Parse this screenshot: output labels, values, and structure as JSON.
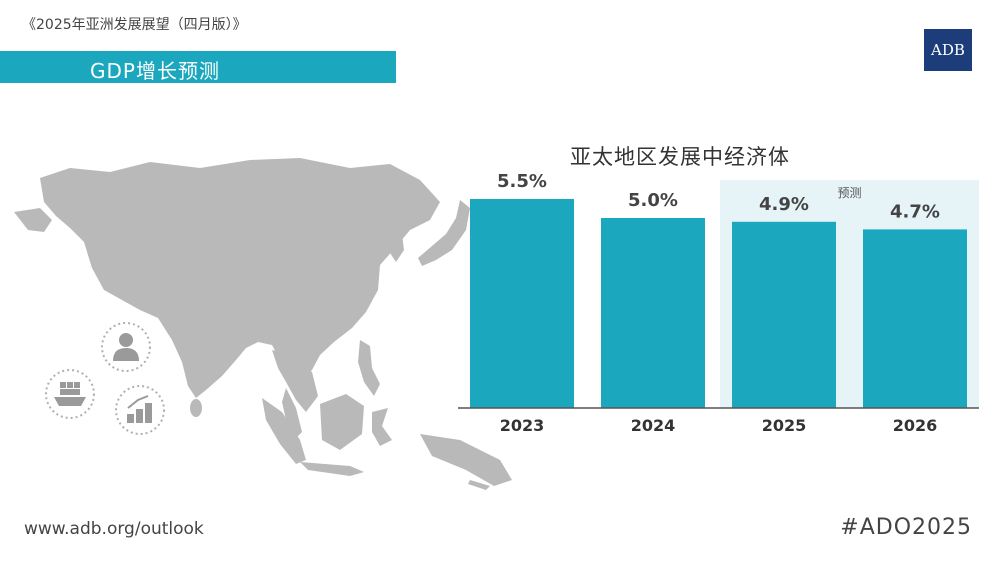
{
  "header": {
    "report_title": "《2025年亚洲发展展望（四月版）》",
    "banner_title": "GDP增长预测",
    "logo_text": "ADB"
  },
  "footer": {
    "url": "www.adb.org/outlook",
    "hashtag": "#ADO2025"
  },
  "colors": {
    "accent": "#1ba8be",
    "bar": "#1ba8be",
    "forecast_bg": "#e6f4f8",
    "map": "#b9b9b9",
    "logo_bg": "#1c3d7a"
  },
  "icons": [
    "person-icon",
    "cargo-ship-icon",
    "coins-growth-icon"
  ],
  "chart_data": {
    "type": "bar",
    "title": "亚太地区发展中经济体",
    "categories": [
      "2023",
      "2024",
      "2025",
      "2026"
    ],
    "values": [
      5.5,
      5.0,
      4.9,
      4.7
    ],
    "value_labels": [
      "5.5%",
      "5.0%",
      "4.9%",
      "4.7%"
    ],
    "ylim": [
      0,
      6
    ],
    "grid": false,
    "forecast_label": "预测",
    "forecast_categories": [
      "2025",
      "2026"
    ]
  }
}
